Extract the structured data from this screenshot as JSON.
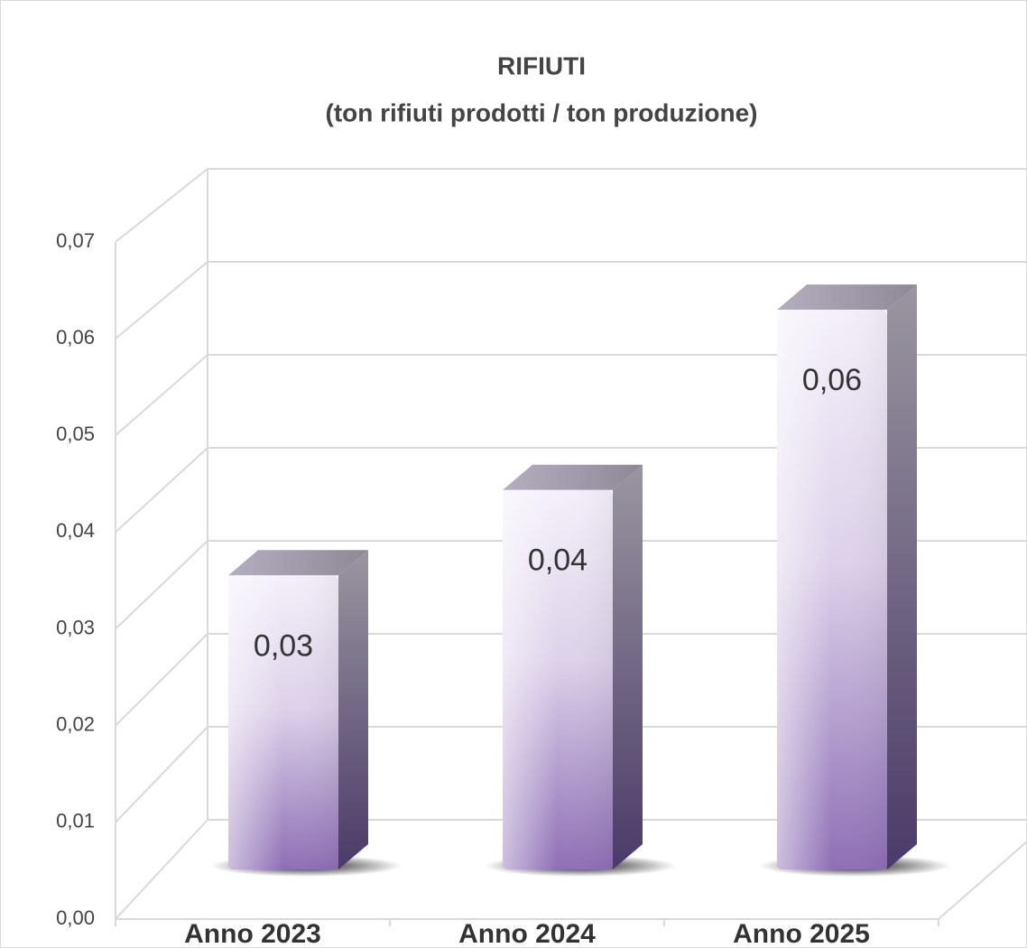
{
  "chart_data": {
    "type": "bar3d",
    "title": "RIFIUTI",
    "subtitle": "(ton rifiuti prodotti / ton produzione)",
    "categories": [
      "Anno 2023",
      "Anno 2024",
      "Anno 2025"
    ],
    "values": [
      0.031,
      0.04,
      0.059
    ],
    "value_labels": [
      "0,03",
      "0,04",
      "0,06"
    ],
    "color": "#8e6fb5",
    "ylim": [
      0,
      0.07
    ],
    "yticks": [
      {
        "value": 0,
        "label": "0,00"
      },
      {
        "value": 0.01,
        "label": "0,01"
      },
      {
        "value": 0.02,
        "label": "0,02"
      },
      {
        "value": 0.03,
        "label": "0,03"
      },
      {
        "value": 0.04,
        "label": "0,04"
      },
      {
        "value": 0.05,
        "label": "0,05"
      },
      {
        "value": 0.06,
        "label": "0,06"
      },
      {
        "value": 0.07,
        "label": "0,07"
      }
    ],
    "grid": true
  }
}
